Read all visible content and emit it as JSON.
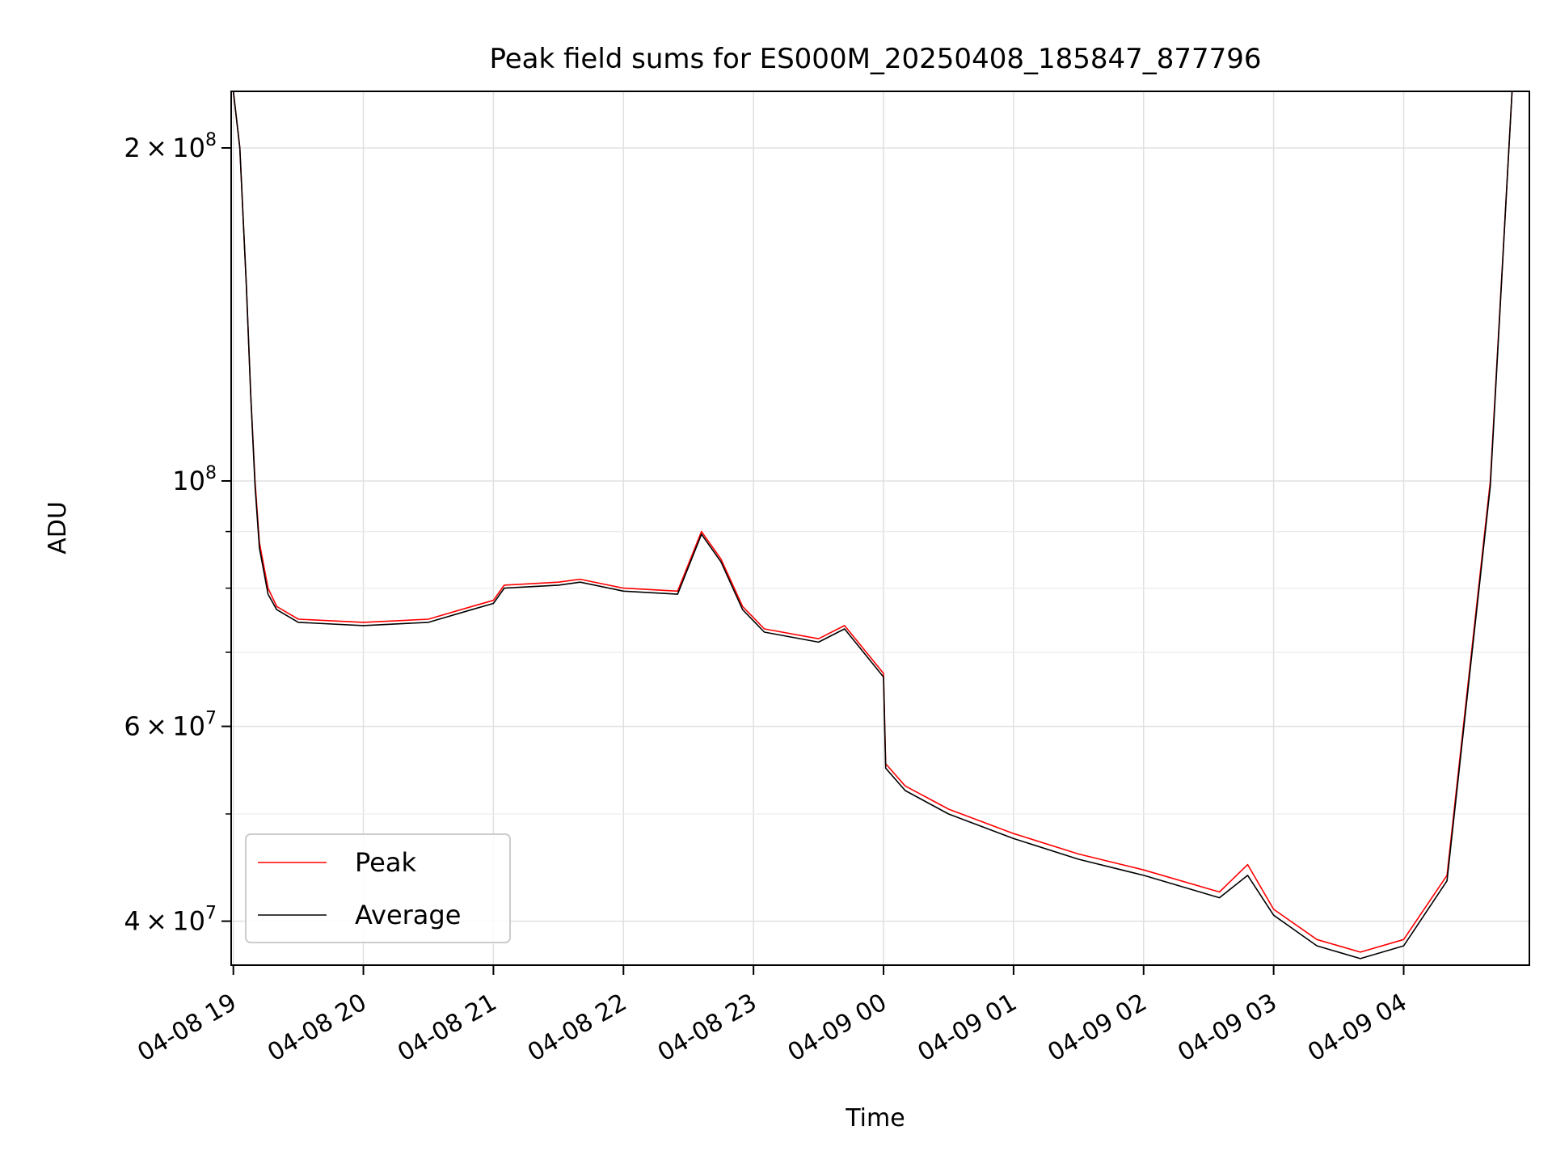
{
  "chart_data": {
    "type": "line",
    "title": "Peak field sums for ES000M_20250408_185847_877796",
    "xlabel": "Time",
    "ylabel": "ADU",
    "y_scale": "log",
    "ylim": [
      36500000,
      225000000
    ],
    "xlim": [
      "2025-04-08 18:59",
      "2025-04-09 04:58"
    ],
    "grid": true,
    "legend_position": "lower-left",
    "x_ticks": [
      {
        "time": "2025-04-08 19:00",
        "label": "04-08 19"
      },
      {
        "time": "2025-04-08 20:00",
        "label": "04-08 20"
      },
      {
        "time": "2025-04-08 21:00",
        "label": "04-08 21"
      },
      {
        "time": "2025-04-08 22:00",
        "label": "04-08 22"
      },
      {
        "time": "2025-04-08 23:00",
        "label": "04-08 23"
      },
      {
        "time": "2025-04-09 00:00",
        "label": "04-09 00"
      },
      {
        "time": "2025-04-09 01:00",
        "label": "04-09 01"
      },
      {
        "time": "2025-04-09 02:00",
        "label": "04-09 02"
      },
      {
        "time": "2025-04-09 03:00",
        "label": "04-09 03"
      },
      {
        "time": "2025-04-09 04:00",
        "label": "04-09 04"
      }
    ],
    "y_ticks_major": [
      {
        "value": 40000000,
        "mant": "4",
        "exp": "7"
      },
      {
        "value": 60000000,
        "mant": "6",
        "exp": "7"
      },
      {
        "value": 100000000,
        "mant": "",
        "exp": "8"
      },
      {
        "value": 200000000,
        "mant": "2",
        "exp": "8"
      }
    ],
    "y_ticks_minor": [
      50000000,
      70000000,
      80000000,
      90000000
    ],
    "series": [
      {
        "name": "Peak",
        "color": "#ff0000",
        "points": [
          [
            "2025-04-08 19:00",
            225000000
          ],
          [
            "2025-04-08 19:03",
            200000000
          ],
          [
            "2025-04-08 19:06",
            150000000
          ],
          [
            "2025-04-08 19:08",
            120000000
          ],
          [
            "2025-04-08 19:10",
            100000000
          ],
          [
            "2025-04-08 19:12",
            88000000
          ],
          [
            "2025-04-08 19:16",
            80000000
          ],
          [
            "2025-04-08 19:20",
            77000000
          ],
          [
            "2025-04-08 19:30",
            75000000
          ],
          [
            "2025-04-08 20:00",
            74500000
          ],
          [
            "2025-04-08 20:30",
            75000000
          ],
          [
            "2025-04-08 20:50",
            77000000
          ],
          [
            "2025-04-08 21:00",
            78000000
          ],
          [
            "2025-04-08 21:05",
            80500000
          ],
          [
            "2025-04-08 21:30",
            81000000
          ],
          [
            "2025-04-08 21:40",
            81500000
          ],
          [
            "2025-04-08 22:00",
            80000000
          ],
          [
            "2025-04-08 22:25",
            79500000
          ],
          [
            "2025-04-08 22:36",
            90000000
          ],
          [
            "2025-04-08 22:45",
            85000000
          ],
          [
            "2025-04-08 22:55",
            77000000
          ],
          [
            "2025-04-08 23:05",
            73500000
          ],
          [
            "2025-04-08 23:30",
            72000000
          ],
          [
            "2025-04-08 23:42",
            74000000
          ],
          [
            "2025-04-09 00:00",
            67000000
          ],
          [
            "2025-04-09 00:01",
            55500000
          ],
          [
            "2025-04-09 00:10",
            53000000
          ],
          [
            "2025-04-09 00:30",
            50500000
          ],
          [
            "2025-04-09 01:00",
            48000000
          ],
          [
            "2025-04-09 01:30",
            46000000
          ],
          [
            "2025-04-09 02:00",
            44500000
          ],
          [
            "2025-04-09 02:35",
            42500000
          ],
          [
            "2025-04-09 02:48",
            45000000
          ],
          [
            "2025-04-09 03:00",
            41000000
          ],
          [
            "2025-04-09 03:20",
            38500000
          ],
          [
            "2025-04-09 03:40",
            37500000
          ],
          [
            "2025-04-09 04:00",
            38500000
          ],
          [
            "2025-04-09 04:20",
            44000000
          ],
          [
            "2025-04-09 04:40",
            100000000
          ],
          [
            "2025-04-09 04:50",
            225000000
          ]
        ]
      },
      {
        "name": "Average",
        "color": "#000000",
        "points": [
          [
            "2025-04-08 19:00",
            225000000
          ],
          [
            "2025-04-08 19:03",
            200000000
          ],
          [
            "2025-04-08 19:06",
            150000000
          ],
          [
            "2025-04-08 19:08",
            120000000
          ],
          [
            "2025-04-08 19:10",
            99000000
          ],
          [
            "2025-04-08 19:12",
            87000000
          ],
          [
            "2025-04-08 19:16",
            79000000
          ],
          [
            "2025-04-08 19:20",
            76500000
          ],
          [
            "2025-04-08 19:30",
            74500000
          ],
          [
            "2025-04-08 20:00",
            74000000
          ],
          [
            "2025-04-08 20:30",
            74500000
          ],
          [
            "2025-04-08 20:50",
            76500000
          ],
          [
            "2025-04-08 21:00",
            77500000
          ],
          [
            "2025-04-08 21:05",
            80000000
          ],
          [
            "2025-04-08 21:30",
            80500000
          ],
          [
            "2025-04-08 21:40",
            81000000
          ],
          [
            "2025-04-08 22:00",
            79500000
          ],
          [
            "2025-04-08 22:25",
            79000000
          ],
          [
            "2025-04-08 22:36",
            89500000
          ],
          [
            "2025-04-08 22:45",
            84500000
          ],
          [
            "2025-04-08 22:55",
            76500000
          ],
          [
            "2025-04-08 23:05",
            73000000
          ],
          [
            "2025-04-08 23:30",
            71500000
          ],
          [
            "2025-04-08 23:42",
            73500000
          ],
          [
            "2025-04-09 00:00",
            66500000
          ],
          [
            "2025-04-09 00:01",
            55000000
          ],
          [
            "2025-04-09 00:10",
            52500000
          ],
          [
            "2025-04-09 00:30",
            50000000
          ],
          [
            "2025-04-09 01:00",
            47500000
          ],
          [
            "2025-04-09 01:30",
            45500000
          ],
          [
            "2025-04-09 02:00",
            44000000
          ],
          [
            "2025-04-09 02:35",
            42000000
          ],
          [
            "2025-04-09 02:48",
            44000000
          ],
          [
            "2025-04-09 03:00",
            40500000
          ],
          [
            "2025-04-09 03:20",
            38000000
          ],
          [
            "2025-04-09 03:40",
            37000000
          ],
          [
            "2025-04-09 04:00",
            38000000
          ],
          [
            "2025-04-09 04:20",
            43500000
          ],
          [
            "2025-04-09 04:40",
            99000000
          ],
          [
            "2025-04-09 04:50",
            225000000
          ]
        ]
      }
    ]
  }
}
